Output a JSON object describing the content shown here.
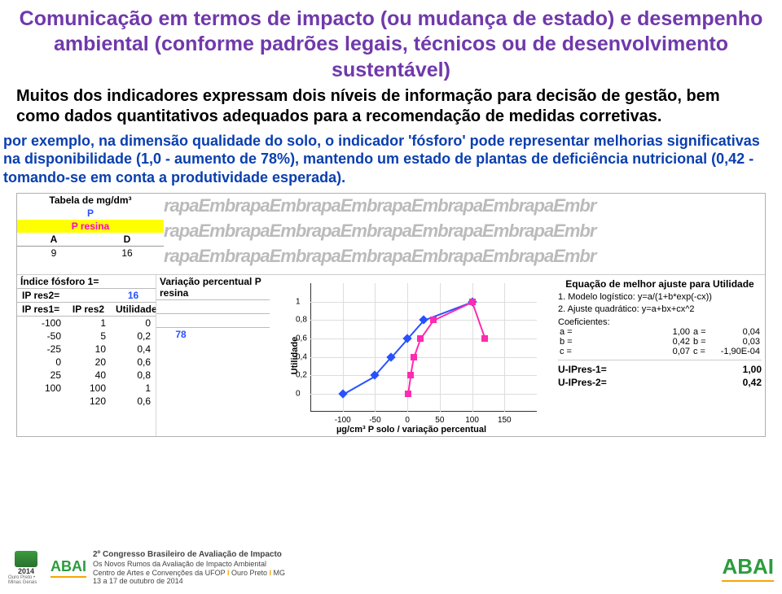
{
  "title": "Comunicação em termos de impacto (ou mudança de estado) e desempenho ambiental (conforme padrões legais, técnicos ou de desenvolvimento sustentável)",
  "para1": "Muitos dos indicadores expressam dois níveis de informação para decisão de gestão, bem como dados quantitativos adequados para a recomendação de medidas corretivas.",
  "para2": "por exemplo, na dimensão qualidade do solo, o indicador 'fósforo' pode representar melhorias significativas na disponibilidade (1,0 - aumento de 78%), mantendo um estado de plantas de deficiência nutricional (0,42 - tomando-se em conta a produtividade esperada).",
  "top_table": {
    "h1": "Tabela de mg/dm³",
    "h2": "P",
    "h3": "P resina",
    "colA": "A",
    "colD": "D",
    "valA": "9",
    "valD": "16"
  },
  "watermark": "rapaEmbrapaEmbrapaEmbrapaEmbrapaEmbrapaEmbr",
  "left_cols": {
    "h1": "Índice fósforo 1=",
    "r1_ip": "IP res2=",
    "r1_val": "16",
    "h2a": "IP res1=",
    "h2b": "IP res2",
    "h2c": "Utilidade",
    "rows": [
      [
        "-100",
        "1",
        "0"
      ],
      [
        "-50",
        "5",
        "0,2"
      ],
      [
        "-25",
        "10",
        "0,4"
      ],
      [
        "0",
        "20",
        "0,6"
      ],
      [
        "25",
        "40",
        "0,8"
      ],
      [
        "100",
        "100",
        "1"
      ],
      [
        "",
        "120",
        "0,6"
      ]
    ]
  },
  "mid_cols": {
    "h": "Variação percentual P resina",
    "rows": [
      [
        "78",
        ""
      ],
      [
        "",
        ""
      ],
      [
        "",
        ""
      ],
      [
        "",
        ""
      ],
      [
        "",
        ""
      ],
      [
        "",
        ""
      ],
      [
        "",
        ""
      ]
    ]
  },
  "chart": {
    "ylabel": "Utilidade",
    "xlabel": "µg/cm³ P solo / variação percentual",
    "xlim": [
      -150,
      200
    ],
    "ylim": [
      -0.2,
      1.2
    ],
    "yticks": [
      0,
      0.2,
      0.4,
      0.6,
      0.8,
      1
    ],
    "yticklabels": [
      "0",
      "0,2",
      "0,4",
      "0,6",
      "0,8",
      "1"
    ],
    "xticks": [
      -100,
      -50,
      0,
      50,
      100,
      150
    ],
    "series1_color": "#2751ff",
    "series2_color": "#ff2bb1",
    "s1_x": [
      -100,
      -50,
      -25,
      0,
      25,
      100
    ],
    "s1_y": [
      0,
      0.2,
      0.4,
      0.6,
      0.8,
      1
    ],
    "s2_x": [
      1,
      5,
      10,
      20,
      40,
      100,
      120
    ],
    "s2_y": [
      0,
      0.2,
      0.4,
      0.6,
      0.8,
      1,
      0.6
    ]
  },
  "right_col": {
    "head": "Equação de melhor ajuste para Utilidade",
    "m1": "1. Modelo logístico: y=a/(1+b*exp(-cx))",
    "m2": "2. Ajuste quadrático: y=a+bx+cx^2",
    "coef_lbl": "Coeficientes:",
    "rows": [
      [
        "a =",
        "1,00",
        "a =",
        "0,04"
      ],
      [
        "b =",
        "0,42",
        "b =",
        "0,03"
      ],
      [
        "c =",
        "0,07",
        "c =",
        "-1,90E-04"
      ]
    ],
    "u1_lbl": "U-IPres-1=",
    "u1_val": "1,00",
    "u2_lbl": "U-IPres-2=",
    "u2_val": "0,42"
  },
  "footer": {
    "year": "2014",
    "abai": "ABAI",
    "tagline": "Ouro Preto • Minas Gerais",
    "line1": "2º Congresso Brasileiro de Avaliação de Impacto",
    "line2": "Os Novos Rumos da Avaliação de Impacto Ambiental",
    "line3a": "Centro de Artes e Convenções da UFOP ",
    "line3b": " Ouro Preto ",
    "line3c": " MG",
    "line4": "13 a 17 de outubro de 2014",
    "sep": "I"
  }
}
